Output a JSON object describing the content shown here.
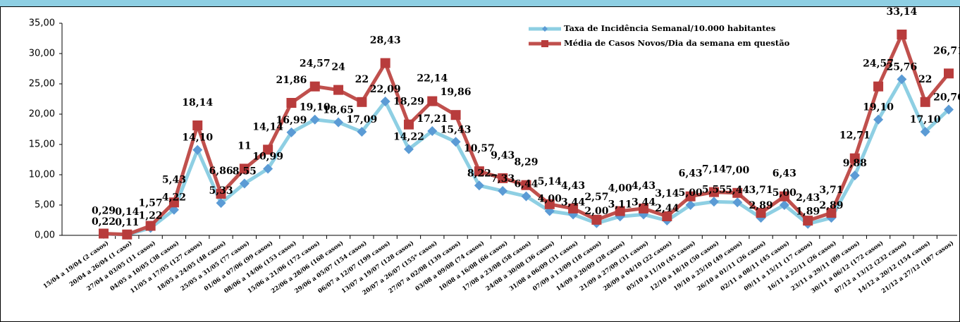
{
  "chart_data": {
    "type": "line",
    "categories": [
      "15/04 a 19/04 (2 casos)",
      "20/04 a 26/04 (1 caso)",
      "27/04 a 03/05 (11 casos)",
      "04/05 a 10/05 (38 casos)",
      "11/05 a 17/05 (127 casos)",
      "18/05 a 24/05 (48 casos)",
      "25/05 a 31/05 (77 casos)",
      "01/06 a 07/06 (99 casos)",
      "08/06 a 14/06 (153 casos)",
      "15/06 a 21/06 (172 casos)",
      "22/06 a 28/06 (168 casos)",
      "29/06 a 05/07 (154 casos)",
      "06/07 a 12/07 (199 casos)",
      "13/07 a 19/07 (128 casos)",
      "20/07 a 26/07 (155* casos)",
      "27/07 a 02/08 (139 casos)",
      "03/08 a 09/08 (74 casos)",
      "10/08 a 16/08 (66 casos)",
      "17/08 a 23/08 (58 casos)",
      "24/08 a 30/08 (36 casos)",
      "31/08 a 06/09 (31 casos)",
      "07/09 a 13/09 (18 casos)",
      "14/09 a 20/09 (28 casos)",
      "21/09 a 27/09 (31 casos)",
      "28/09 a 04/10 (22 casos)",
      "05/10 a 11/10 (45 casos)",
      "12/10 a 18/10 (50 casos)",
      "19/10 a 25/10 (49 casos)",
      "26/10 a 01/11 (26 casos)",
      "02/11 a 08/11 (45 casos)",
      "09/11 a 15/11 (17 casos)",
      "16/11 a 22/11 (26 casos)",
      "23/11 a 29/11 (89 casos)",
      "30/11 a 06/12 (172 casos)",
      "07/12 a 13/12 (232 casos)",
      "14/12 a 20/12 (154 casos)",
      "21/12 a 27/12 (187 casos)"
    ],
    "series": [
      {
        "name": "Taxa de Incidência Semanal/10.000 habitantes",
        "color": "#8ecfe3",
        "marker_color": "#5b9bd5",
        "marker": "diamond",
        "values": [
          0.22,
          0.11,
          1.22,
          4.22,
          14.1,
          5.33,
          8.55,
          10.99,
          16.99,
          19.1,
          18.65,
          17.09,
          22.09,
          14.22,
          17.21,
          15.43,
          8.22,
          7.33,
          6.44,
          4.0,
          3.44,
          2.0,
          3.11,
          3.44,
          2.44,
          5.0,
          5.55,
          5.44,
          2.89,
          5.0,
          1.89,
          2.89,
          9.88,
          19.1,
          25.76,
          17.1,
          20.76
        ],
        "value_labels": [
          "0,22",
          "0,11",
          "1,22",
          "4,22",
          "14,10",
          "5,33",
          "8,55",
          "10,99",
          "16,99",
          "19,10",
          "18,65",
          "17,09",
          "22,09",
          "14,22",
          "17,21",
          "15,43",
          "8,22",
          "7,33",
          "6,44",
          "4,00",
          "3,44",
          "2,00",
          "3,11",
          "3,44",
          "2,44",
          "5,00",
          "5,55",
          "5,44",
          "2,89",
          "5,00",
          "1,89",
          "2,89",
          "9,88",
          "19,10",
          "25,76",
          "17,10",
          "20,76"
        ]
      },
      {
        "name": "Média de Casos Novos/Dia da semana em questão",
        "color": "#c0504d",
        "marker_color": "#b83c3c",
        "marker": "square",
        "values": [
          0.29,
          0.14,
          1.57,
          5.43,
          18.14,
          6.86,
          11,
          14.14,
          21.86,
          24.57,
          24,
          22,
          28.43,
          18.29,
          22.14,
          19.86,
          10.57,
          9.43,
          8.29,
          5.14,
          4.43,
          2.57,
          4.0,
          4.43,
          3.14,
          6.43,
          7.14,
          7.0,
          3.71,
          6.43,
          2.43,
          3.71,
          12.71,
          24.57,
          33.14,
          22,
          26.71
        ],
        "value_labels": [
          "0,29",
          "0,14",
          "1,57",
          "5,43",
          "18,14",
          "6,86",
          "11",
          "14,14",
          "21,86",
          "24,57",
          "24",
          "22",
          "28,43",
          "18,29",
          "22,14",
          "19,86",
          "10,57",
          "9,43",
          "8,29",
          "5,14",
          "4,43",
          "2,57",
          "4,00",
          "4,43",
          "3,14",
          "6,43",
          "7,14",
          "7,00",
          "3,71",
          "6,43",
          "2,43",
          "3,71",
          "12,71",
          "24,57",
          "33,14",
          "22",
          "26,71"
        ]
      }
    ],
    "ylim": [
      0,
      35
    ],
    "yticks": [
      {
        "value": 0,
        "label": "0,00"
      },
      {
        "value": 5,
        "label": "5,00"
      },
      {
        "value": 10,
        "label": "10,00"
      },
      {
        "value": 15,
        "label": "15,00"
      },
      {
        "value": 20,
        "label": "20,00"
      },
      {
        "value": 25,
        "label": "25,00"
      },
      {
        "value": 30,
        "label": "30,00"
      },
      {
        "value": 35,
        "label": "35,00"
      }
    ],
    "grid": false,
    "legend": "top-right"
  }
}
